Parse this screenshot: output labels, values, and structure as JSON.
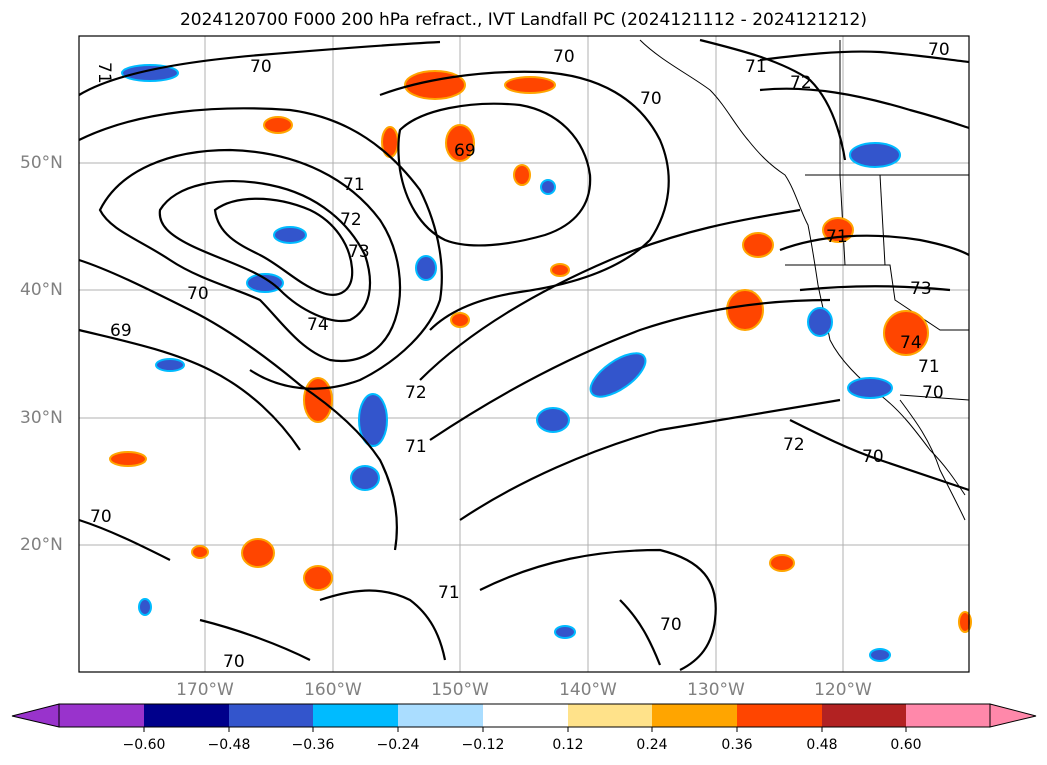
{
  "title": "2024120700 F000 200 hPa refract., IVT Landfall PC (2024121112 - 2024121212)",
  "map": {
    "lat_labels": [
      "50°N",
      "40°N",
      "30°N",
      "20°N"
    ],
    "lon_labels": [
      "170°W",
      "160°W",
      "150°W",
      "140°W",
      "130°W",
      "120°W"
    ],
    "contour_labels": [
      "71",
      "70",
      "70",
      "70",
      "71",
      "72",
      "70",
      "69",
      "71",
      "72",
      "73",
      "70",
      "74",
      "69",
      "72",
      "71",
      "71",
      "70",
      "70",
      "70",
      "71",
      "73",
      "74",
      "71",
      "70",
      "72",
      "70"
    ]
  },
  "colorbar": {
    "ticks": [
      "−0.60",
      "−0.48",
      "−0.36",
      "−0.24",
      "−0.12",
      "0.12",
      "0.24",
      "0.36",
      "0.48",
      "0.60"
    ],
    "bin_colors": [
      "#9933cc",
      "#00008b",
      "#3355cc",
      "#00bbff",
      "#aaddff",
      "#ffffff",
      "#ffe28a",
      "#ffa500",
      "#ff4500",
      "#b22222",
      "#ff88aa"
    ]
  },
  "colors": {
    "contour": "#000000",
    "grid": "#b0b0b0",
    "label_gray": "#808080"
  }
}
